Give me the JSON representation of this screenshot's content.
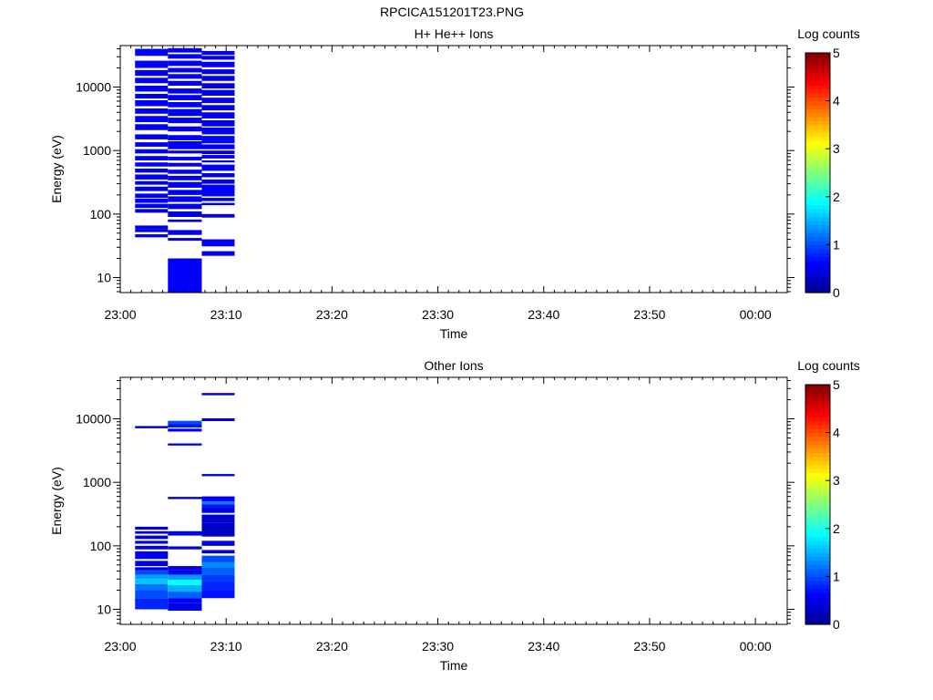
{
  "figure_title": "RPCICA151201T23.PNG",
  "colorscale": [
    "#00008f",
    "#0000ff",
    "#0080ff",
    "#00ffff",
    "#80ff80",
    "#ffff00",
    "#ff8000",
    "#ff0000",
    "#800000"
  ],
  "chart_data": [
    {
      "type": "heatmap",
      "title": "H+ He++ Ions",
      "xlabel": "Time",
      "ylabel": "Energy (eV)",
      "x_ticks": [
        "23:00",
        "23:10",
        "23:20",
        "23:30",
        "23:40",
        "23:50",
        "00:00"
      ],
      "x_range_minutes": [
        0,
        63
      ],
      "y_scale": "log",
      "y_range": [
        5.8,
        45000
      ],
      "y_ticks": [
        10,
        100,
        1000,
        10000
      ],
      "y_tick_labels": [
        "10",
        "100",
        "1000",
        "10000"
      ],
      "colorbar": {
        "label": "Log counts",
        "range": [
          0,
          5
        ],
        "ticks": [
          "0",
          "1",
          "2",
          "3",
          "4",
          "5"
        ]
      },
      "time_bins_minutes": [
        [
          1.4,
          4.5
        ],
        [
          4.5,
          7.7
        ],
        [
          7.7,
          10.8
        ]
      ],
      "cells": [
        {
          "bin": 0,
          "e": [
            43,
            48
          ],
          "v": 0.5
        },
        {
          "bin": 0,
          "e": [
            52,
            58
          ],
          "v": 0.45
        },
        {
          "bin": 0,
          "e": [
            58,
            66
          ],
          "v": 0.55
        },
        {
          "bin": 0,
          "e": [
            105,
            120
          ],
          "v": 0.5
        },
        {
          "bin": 0,
          "e": [
            125,
            145
          ],
          "v": 0.55
        },
        {
          "bin": 0,
          "e": [
            150,
            175
          ],
          "v": 0.5
        },
        {
          "bin": 0,
          "e": [
            180,
            210
          ],
          "v": 0.6
        },
        {
          "bin": 0,
          "e": [
            230,
            270
          ],
          "v": 0.5
        },
        {
          "bin": 0,
          "e": [
            290,
            330
          ],
          "v": 0.55
        },
        {
          "bin": 0,
          "e": [
            350,
            420
          ],
          "v": 0.6
        },
        {
          "bin": 0,
          "e": [
            450,
            520
          ],
          "v": 0.5
        },
        {
          "bin": 0,
          "e": [
            560,
            650
          ],
          "v": 0.65
        },
        {
          "bin": 0,
          "e": [
            700,
            820
          ],
          "v": 0.55
        },
        {
          "bin": 0,
          "e": [
            900,
            1050
          ],
          "v": 0.5
        },
        {
          "bin": 0,
          "e": [
            1150,
            1350
          ],
          "v": 0.6
        },
        {
          "bin": 0,
          "e": [
            1500,
            1800
          ],
          "v": 0.55
        },
        {
          "bin": 0,
          "e": [
            2100,
            2600
          ],
          "v": 0.5
        },
        {
          "bin": 0,
          "e": [
            2800,
            3500
          ],
          "v": 0.6
        },
        {
          "bin": 0,
          "e": [
            3800,
            4600
          ],
          "v": 0.55
        },
        {
          "bin": 0,
          "e": [
            5000,
            6200
          ],
          "v": 0.6
        },
        {
          "bin": 0,
          "e": [
            6600,
            7800
          ],
          "v": 0.5
        },
        {
          "bin": 0,
          "e": [
            8500,
            10500
          ],
          "v": 0.55
        },
        {
          "bin": 0,
          "e": [
            11500,
            14000
          ],
          "v": 0.6
        },
        {
          "bin": 0,
          "e": [
            15000,
            18500
          ],
          "v": 0.55
        },
        {
          "bin": 0,
          "e": [
            20000,
            26000
          ],
          "v": 0.6
        },
        {
          "bin": 0,
          "e": [
            31000,
            40000
          ],
          "v": 0.65
        },
        {
          "bin": 1,
          "e": [
            5.8,
            20
          ],
          "v": 0.6
        },
        {
          "bin": 1,
          "e": [
            38,
            42
          ],
          "v": 0.4
        },
        {
          "bin": 1,
          "e": [
            47,
            56
          ],
          "v": 0.5
        },
        {
          "bin": 1,
          "e": [
            75,
            82
          ],
          "v": 0.45
        },
        {
          "bin": 1,
          "e": [
            90,
            110
          ],
          "v": 0.5
        },
        {
          "bin": 1,
          "e": [
            120,
            145
          ],
          "v": 0.55
        },
        {
          "bin": 1,
          "e": [
            155,
            190
          ],
          "v": 0.6
        },
        {
          "bin": 1,
          "e": [
            200,
            240
          ],
          "v": 0.5
        },
        {
          "bin": 1,
          "e": [
            260,
            320
          ],
          "v": 0.55
        },
        {
          "bin": 1,
          "e": [
            340,
            400
          ],
          "v": 0.5
        },
        {
          "bin": 1,
          "e": [
            430,
            500
          ],
          "v": 0.6
        },
        {
          "bin": 1,
          "e": [
            560,
            640
          ],
          "v": 0.55
        },
        {
          "bin": 1,
          "e": [
            700,
            800
          ],
          "v": 0.65
        },
        {
          "bin": 1,
          "e": [
            900,
            1000
          ],
          "v": 0.5
        },
        {
          "bin": 1,
          "e": [
            1050,
            1400
          ],
          "v": 0.6
        },
        {
          "bin": 1,
          "e": [
            1450,
            1750
          ],
          "v": 0.55
        },
        {
          "bin": 1,
          "e": [
            2000,
            2400
          ],
          "v": 0.5
        },
        {
          "bin": 1,
          "e": [
            2700,
            3300
          ],
          "v": 0.6
        },
        {
          "bin": 1,
          "e": [
            3500,
            4500
          ],
          "v": 0.55
        },
        {
          "bin": 1,
          "e": [
            4800,
            5800
          ],
          "v": 0.6
        },
        {
          "bin": 1,
          "e": [
            6200,
            7500
          ],
          "v": 0.5
        },
        {
          "bin": 1,
          "e": [
            7900,
            9500
          ],
          "v": 0.6
        },
        {
          "bin": 1,
          "e": [
            10500,
            12500
          ],
          "v": 0.55
        },
        {
          "bin": 1,
          "e": [
            13500,
            16000
          ],
          "v": 0.6
        },
        {
          "bin": 1,
          "e": [
            17000,
            20000
          ],
          "v": 0.5
        },
        {
          "bin": 1,
          "e": [
            21500,
            26000
          ],
          "v": 0.55
        },
        {
          "bin": 1,
          "e": [
            28000,
            33000
          ],
          "v": 0.6
        },
        {
          "bin": 1,
          "e": [
            35000,
            41000
          ],
          "v": 0.55
        },
        {
          "bin": 2,
          "e": [
            22,
            26
          ],
          "v": 0.5
        },
        {
          "bin": 2,
          "e": [
            31,
            40
          ],
          "v": 0.55
        },
        {
          "bin": 2,
          "e": [
            88,
            100
          ],
          "v": 0.5
        },
        {
          "bin": 2,
          "e": [
            138,
            150
          ],
          "v": 0.45
        },
        {
          "bin": 2,
          "e": [
            160,
            180
          ],
          "v": 0.5
        },
        {
          "bin": 2,
          "e": [
            190,
            290
          ],
          "v": 0.6
        },
        {
          "bin": 2,
          "e": [
            300,
            350
          ],
          "v": 0.55
        },
        {
          "bin": 2,
          "e": [
            380,
            440
          ],
          "v": 0.45
        },
        {
          "bin": 2,
          "e": [
            480,
            600
          ],
          "v": 0.6
        },
        {
          "bin": 2,
          "e": [
            650,
            700
          ],
          "v": 0.55
        },
        {
          "bin": 2,
          "e": [
            750,
            850
          ],
          "v": 0.5
        },
        {
          "bin": 2,
          "e": [
            880,
            1000
          ],
          "v": 0.55
        },
        {
          "bin": 2,
          "e": [
            1050,
            1250
          ],
          "v": 0.6
        },
        {
          "bin": 2,
          "e": [
            1300,
            1700
          ],
          "v": 0.65
        },
        {
          "bin": 2,
          "e": [
            1800,
            2300
          ],
          "v": 0.55
        },
        {
          "bin": 2,
          "e": [
            2400,
            3000
          ],
          "v": 0.5
        },
        {
          "bin": 2,
          "e": [
            3200,
            4000
          ],
          "v": 0.6
        },
        {
          "bin": 2,
          "e": [
            4300,
            5200
          ],
          "v": 0.55
        },
        {
          "bin": 2,
          "e": [
            5600,
            6800
          ],
          "v": 0.6
        },
        {
          "bin": 2,
          "e": [
            7300,
            9000
          ],
          "v": 0.55
        },
        {
          "bin": 2,
          "e": [
            9500,
            11500
          ],
          "v": 0.5
        },
        {
          "bin": 2,
          "e": [
            12500,
            15000
          ],
          "v": 0.6
        },
        {
          "bin": 2,
          "e": [
            16000,
            19000
          ],
          "v": 0.55
        },
        {
          "bin": 2,
          "e": [
            20500,
            25000
          ],
          "v": 0.6
        },
        {
          "bin": 2,
          "e": [
            27000,
            31000
          ],
          "v": 0.5
        },
        {
          "bin": 2,
          "e": [
            32000,
            37000
          ],
          "v": 0.55
        }
      ]
    },
    {
      "type": "heatmap",
      "title": "Other Ions",
      "xlabel": "Time",
      "ylabel": "Energy (eV)",
      "x_ticks": [
        "23:00",
        "23:10",
        "23:20",
        "23:30",
        "23:40",
        "23:50",
        "00:00"
      ],
      "x_range_minutes": [
        0,
        63
      ],
      "y_scale": "log",
      "y_range": [
        5.8,
        45000
      ],
      "y_ticks": [
        10,
        100,
        1000,
        10000
      ],
      "y_tick_labels": [
        "10",
        "100",
        "1000",
        "10000"
      ],
      "colorbar": {
        "label": "Log counts",
        "range": [
          0,
          5
        ],
        "ticks": [
          "0",
          "1",
          "2",
          "3",
          "4",
          "5"
        ]
      },
      "time_bins_minutes": [
        [
          1.4,
          4.5
        ],
        [
          4.5,
          7.7
        ],
        [
          7.7,
          10.8
        ]
      ],
      "cells": [
        {
          "bin": 0,
          "e": [
            7100,
            7700
          ],
          "v": 0.3
        },
        {
          "bin": 0,
          "e": [
            180,
            200
          ],
          "v": 0.45
        },
        {
          "bin": 0,
          "e": [
            155,
            170
          ],
          "v": 0.5
        },
        {
          "bin": 0,
          "e": [
            128,
            145
          ],
          "v": 0.45
        },
        {
          "bin": 0,
          "e": [
            108,
            120
          ],
          "v": 0.5
        },
        {
          "bin": 0,
          "e": [
            88,
            100
          ],
          "v": 0.45
        },
        {
          "bin": 0,
          "e": [
            62,
            82
          ],
          "v": 0.55
        },
        {
          "bin": 0,
          "e": [
            48,
            58
          ],
          "v": 0.5
        },
        {
          "bin": 0,
          "e": [
            41,
            46
          ],
          "v": 0.4
        },
        {
          "bin": 0,
          "e": [
            35,
            41
          ],
          "v": 1.0
        },
        {
          "bin": 0,
          "e": [
            30,
            35
          ],
          "v": 1.4
        },
        {
          "bin": 0,
          "e": [
            25,
            30
          ],
          "v": 1.6
        },
        {
          "bin": 0,
          "e": [
            20,
            25
          ],
          "v": 1.2
        },
        {
          "bin": 0,
          "e": [
            15,
            20
          ],
          "v": 1.0
        },
        {
          "bin": 0,
          "e": [
            10,
            15
          ],
          "v": 0.8
        },
        {
          "bin": 1,
          "e": [
            8200,
            9300
          ],
          "v": 1.0
        },
        {
          "bin": 1,
          "e": [
            7300,
            8200
          ],
          "v": 0.7
        },
        {
          "bin": 1,
          "e": [
            6300,
            7000
          ],
          "v": 0.5
        },
        {
          "bin": 1,
          "e": [
            3800,
            4100
          ],
          "v": 0.4
        },
        {
          "bin": 1,
          "e": [
            545,
            590
          ],
          "v": 0.35
        },
        {
          "bin": 1,
          "e": [
            145,
            170
          ],
          "v": 0.5
        },
        {
          "bin": 1,
          "e": [
            88,
            98
          ],
          "v": 0.45
        },
        {
          "bin": 1,
          "e": [
            42,
            48
          ],
          "v": 0.4
        },
        {
          "bin": 1,
          "e": [
            35,
            42
          ],
          "v": 0.6
        },
        {
          "bin": 1,
          "e": [
            29,
            35
          ],
          "v": 1.4
        },
        {
          "bin": 1,
          "e": [
            24,
            29
          ],
          "v": 1.9
        },
        {
          "bin": 1,
          "e": [
            19,
            24
          ],
          "v": 1.5
        },
        {
          "bin": 1,
          "e": [
            15,
            19
          ],
          "v": 1.1
        },
        {
          "bin": 1,
          "e": [
            12.5,
            15
          ],
          "v": 0.6
        },
        {
          "bin": 1,
          "e": [
            9.5,
            12.5
          ],
          "v": 0.5
        },
        {
          "bin": 2,
          "e": [
            23500,
            25500
          ],
          "v": 0.4
        },
        {
          "bin": 2,
          "e": [
            9200,
            10200
          ],
          "v": 0.4
        },
        {
          "bin": 2,
          "e": [
            1250,
            1350
          ],
          "v": 0.4
        },
        {
          "bin": 2,
          "e": [
            500,
            600
          ],
          "v": 0.6
        },
        {
          "bin": 2,
          "e": [
            450,
            500
          ],
          "v": 1.2
        },
        {
          "bin": 2,
          "e": [
            400,
            450
          ],
          "v": 0.7
        },
        {
          "bin": 2,
          "e": [
            330,
            400
          ],
          "v": 0.5
        },
        {
          "bin": 2,
          "e": [
            230,
            310
          ],
          "v": 0.35
        },
        {
          "bin": 2,
          "e": [
            140,
            230
          ],
          "v": 0.3
        },
        {
          "bin": 2,
          "e": [
            100,
            120
          ],
          "v": 0.5
        },
        {
          "bin": 2,
          "e": [
            76,
            86
          ],
          "v": 0.45
        },
        {
          "bin": 2,
          "e": [
            55,
            70
          ],
          "v": 1.0
        },
        {
          "bin": 2,
          "e": [
            45,
            55
          ],
          "v": 1.3
        },
        {
          "bin": 2,
          "e": [
            35,
            45
          ],
          "v": 1.1
        },
        {
          "bin": 2,
          "e": [
            27,
            35
          ],
          "v": 0.9
        },
        {
          "bin": 2,
          "e": [
            20,
            27
          ],
          "v": 0.8
        },
        {
          "bin": 2,
          "e": [
            15,
            20
          ],
          "v": 0.7
        }
      ]
    }
  ]
}
